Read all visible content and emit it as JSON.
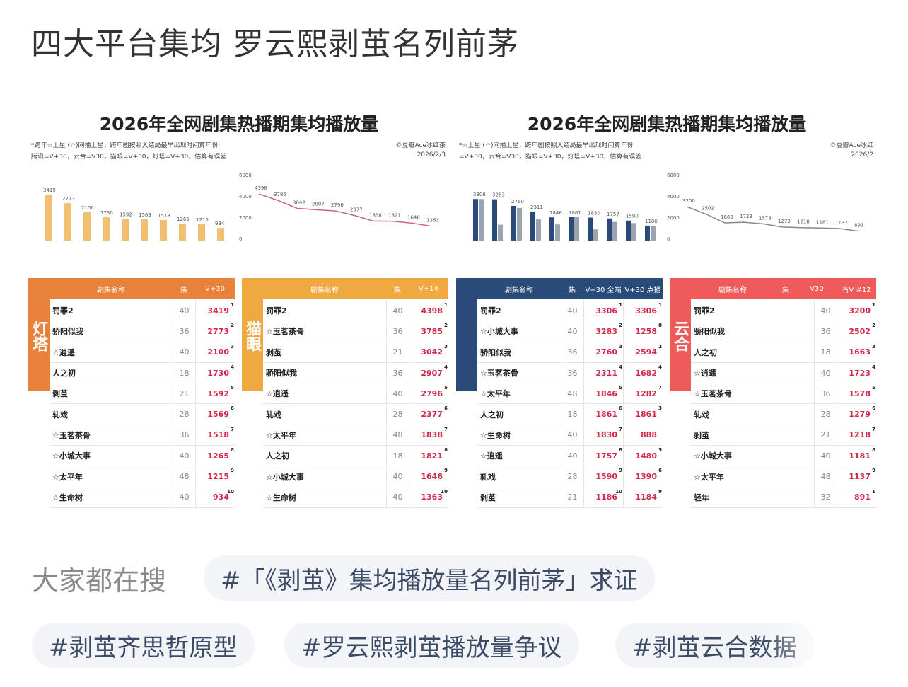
{
  "post": {
    "title": "四大平台集均 罗云熙剥茧名列前茅"
  },
  "images": [
    {
      "title": "2026年全网剧集热播期集均播放量",
      "note1": "*跨年☆上星 (☆)网播上星，跨年剧按照大结局最早出现时间算年份",
      "note2": "腾讯=V+30，云合=V30，猫眼=V+30，灯塔=V+30，估算有误差",
      "credit": "©豆瓣Ace冰红茶",
      "date": "2026/2/3",
      "bar_chart": {
        "type": "bar",
        "values": [
          3419,
          2773,
          2100,
          1730,
          1592,
          1569,
          1518,
          1265,
          1215,
          934
        ],
        "color": "#f0c070",
        "yticks": [
          "0",
          "",
          "",
          ""
        ]
      },
      "line_chart": {
        "type": "line",
        "values": [
          4398,
          3785,
          3042,
          2907,
          2796,
          2377,
          1838,
          1821,
          1646,
          1363
        ],
        "color": "#c8607a",
        "yticks": [
          "6000",
          "4000",
          "2000",
          "0"
        ]
      },
      "tables": [
        {
          "platform": "灯塔",
          "color": "#e8823a",
          "headers": [
            "剧集名称",
            "集",
            "V+30"
          ],
          "rows": [
            [
              "罚罪2",
              "40",
              "3419",
              "1"
            ],
            [
              "骄阳似我",
              "36",
              "2773",
              "2"
            ],
            [
              "☆逍遥",
              "40",
              "2100",
              "3"
            ],
            [
              "人之初",
              "18",
              "1730",
              "4"
            ],
            [
              "剥茧",
              "21",
              "1592",
              "5"
            ],
            [
              "轧戏",
              "28",
              "1569",
              "6"
            ],
            [
              "☆玉茗茶骨",
              "36",
              "1518",
              "7"
            ],
            [
              "☆小城大事",
              "40",
              "1265",
              "8"
            ],
            [
              "☆太平年",
              "48",
              "1215",
              "9"
            ],
            [
              "☆生命树",
              "40",
              "934",
              "10"
            ]
          ]
        },
        {
          "platform": "猫眼",
          "color": "#f0a940",
          "headers": [
            "剧集名称",
            "集",
            "V+14"
          ],
          "rows": [
            [
              "罚罪2",
              "40",
              "4398",
              "1"
            ],
            [
              "☆玉茗茶骨",
              "36",
              "3785",
              "2"
            ],
            [
              "剥茧",
              "21",
              "3042",
              "3"
            ],
            [
              "骄阳似我",
              "36",
              "2907",
              "4"
            ],
            [
              "☆逍遥",
              "40",
              "2796",
              "5"
            ],
            [
              "轧戏",
              "28",
              "2377",
              "6"
            ],
            [
              "☆太平年",
              "48",
              "1838",
              "7"
            ],
            [
              "人之初",
              "18",
              "1821",
              "8"
            ],
            [
              "☆小城大事",
              "40",
              "1646",
              "9"
            ],
            [
              "☆生命树",
              "40",
              "1363",
              "10"
            ]
          ]
        }
      ]
    },
    {
      "title": "2026年全网剧集热播期集均播放量",
      "note1": "*☆上星 (☆)网播上星，跨年剧按照大结局最早出现时间算年份",
      "note2": "=V+30，云合=V30，猫眼=V+30，灯塔=V+30，估算有误差",
      "credit": "©豆瓣Ace冰红",
      "date": "2026/2",
      "bar_chart": {
        "type": "grouped-bar",
        "values": [
          [
            3306,
            3306
          ],
          [
            3283,
            1258
          ],
          [
            2760,
            2594
          ],
          [
            2311,
            1682
          ],
          [
            1846,
            1282
          ],
          [
            1861,
            1861
          ],
          [
            1830,
            888
          ],
          [
            1757,
            1480
          ],
          [
            1590,
            1390
          ],
          [
            1186,
            1184
          ]
        ],
        "colors": [
          "#2a4a7a",
          "#9aa4b0"
        ]
      },
      "line_chart": {
        "type": "line",
        "values": [
          3200,
          2502,
          1663,
          1723,
          1578,
          1279,
          1218,
          1181,
          1137,
          891
        ],
        "color": "#888888",
        "yticks": [
          "6000",
          "4000",
          "2000",
          "0"
        ]
      },
      "tables": [
        {
          "platform": "",
          "color": "#2a4a7a",
          "headers": [
            "剧集名称",
            "集",
            "V+30 全端",
            "V+30 点播"
          ],
          "rows": [
            [
              "罚罪2",
              "40",
              "3306",
              "1",
              "3306",
              "1"
            ],
            [
              "☆小城大事",
              "40",
              "3283",
              "2",
              "1258",
              "8"
            ],
            [
              "骄阳似我",
              "36",
              "2760",
              "3",
              "2594",
              "2"
            ],
            [
              "☆玉茗茶骨",
              "36",
              "2311",
              "4",
              "1682",
              "4"
            ],
            [
              "☆太平年",
              "48",
              "1846",
              "5",
              "1282",
              "7"
            ],
            [
              "人之初",
              "18",
              "1861",
              "6",
              "1861",
              "3"
            ],
            [
              "☆生命树",
              "40",
              "1830",
              "7",
              "888",
              ""
            ],
            [
              "☆逍遥",
              "40",
              "1757",
              "8",
              "1480",
              "5"
            ],
            [
              "轧戏",
              "28",
              "1590",
              "9",
              "1390",
              "6"
            ],
            [
              "剥茧",
              "21",
              "1186",
              "10",
              "1184",
              "9"
            ]
          ]
        },
        {
          "platform": "云合",
          "color": "#ef5a5a",
          "headers": [
            "剧集名称",
            "集",
            "V30",
            "有V #12"
          ],
          "rows": [
            [
              "罚罪2",
              "40",
              "3200",
              "1"
            ],
            [
              "骄阳似我",
              "36",
              "2502",
              "2"
            ],
            [
              "人之初",
              "18",
              "1663",
              "3"
            ],
            [
              "☆逍遥",
              "40",
              "1723",
              "4"
            ],
            [
              "☆玉茗茶骨",
              "36",
              "1578",
              "5"
            ],
            [
              "轧戏",
              "28",
              "1279",
              "6"
            ],
            [
              "剥茧",
              "21",
              "1218",
              "7"
            ],
            [
              "☆小城大事",
              "40",
              "1181",
              "8"
            ],
            [
              "☆太平年",
              "48",
              "1137",
              "9"
            ],
            [
              "轻年",
              "32",
              "891",
              "1"
            ]
          ]
        }
      ]
    }
  ],
  "search": {
    "label": "大家都在搜",
    "chips": [
      "#「《剥茧》集均播放量名列前茅」求证",
      "#剥茧齐思哲原型",
      "#罗云熙剥茧播放量争议",
      "#剥茧云合数据"
    ]
  }
}
